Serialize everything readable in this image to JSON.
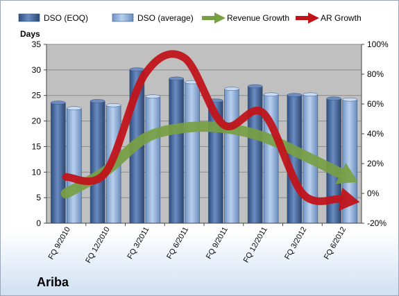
{
  "chart_data": {
    "type": "bar",
    "categories": [
      "FQ 9/2010",
      "FQ 12/2010",
      "FQ 3/2011",
      "FQ 6/2011",
      "FQ 9/2011",
      "FQ 12/2011",
      "FQ 3/2012",
      "FQ 6/2012"
    ],
    "series": [
      {
        "name": "DSO (EOQ)",
        "values": [
          23.6,
          23.9,
          30.1,
          28.3,
          24.0,
          26.8,
          25.1,
          24.4
        ],
        "axis": "left",
        "color": "#4f6fa3"
      },
      {
        "name": "DSO (average)",
        "values": [
          22.5,
          23.1,
          24.8,
          27.6,
          26.3,
          25.2,
          25.2,
          24.2
        ],
        "axis": "left",
        "color": "#93b3dc"
      }
    ],
    "lines": [
      {
        "name": "Revenue Growth",
        "values": [
          0.0,
          15.0,
          37.0,
          44.0,
          44.0,
          38.0,
          26.0,
          13.0
        ],
        "axis": "right",
        "unit": "%",
        "color": "#77a043",
        "style": "thick-arrow"
      },
      {
        "name": "AR Growth",
        "values": [
          11.0,
          14.0,
          80.0,
          91.0,
          46.0,
          54.0,
          0.0,
          -4.0
        ],
        "axis": "right",
        "unit": "%",
        "color": "#c0141b",
        "style": "thick-arrow"
      }
    ],
    "left_axis": {
      "title": "Days",
      "ticks": [
        "0",
        "5",
        "10",
        "15",
        "20",
        "25",
        "30",
        "35"
      ],
      "range": [
        0,
        35
      ]
    },
    "right_axis": {
      "ticks": [
        "-20%",
        "0%",
        "20%",
        "40%",
        "60%",
        "80%",
        "100%"
      ],
      "range": [
        -20,
        100
      ]
    },
    "legend": [
      "DSO (EOQ)",
      "DSO (average)",
      "Revenue Growth",
      "AR Growth"
    ],
    "legend_position": "top",
    "grid": true,
    "plot_background": "#c0c0c0"
  },
  "company": "Ariba"
}
